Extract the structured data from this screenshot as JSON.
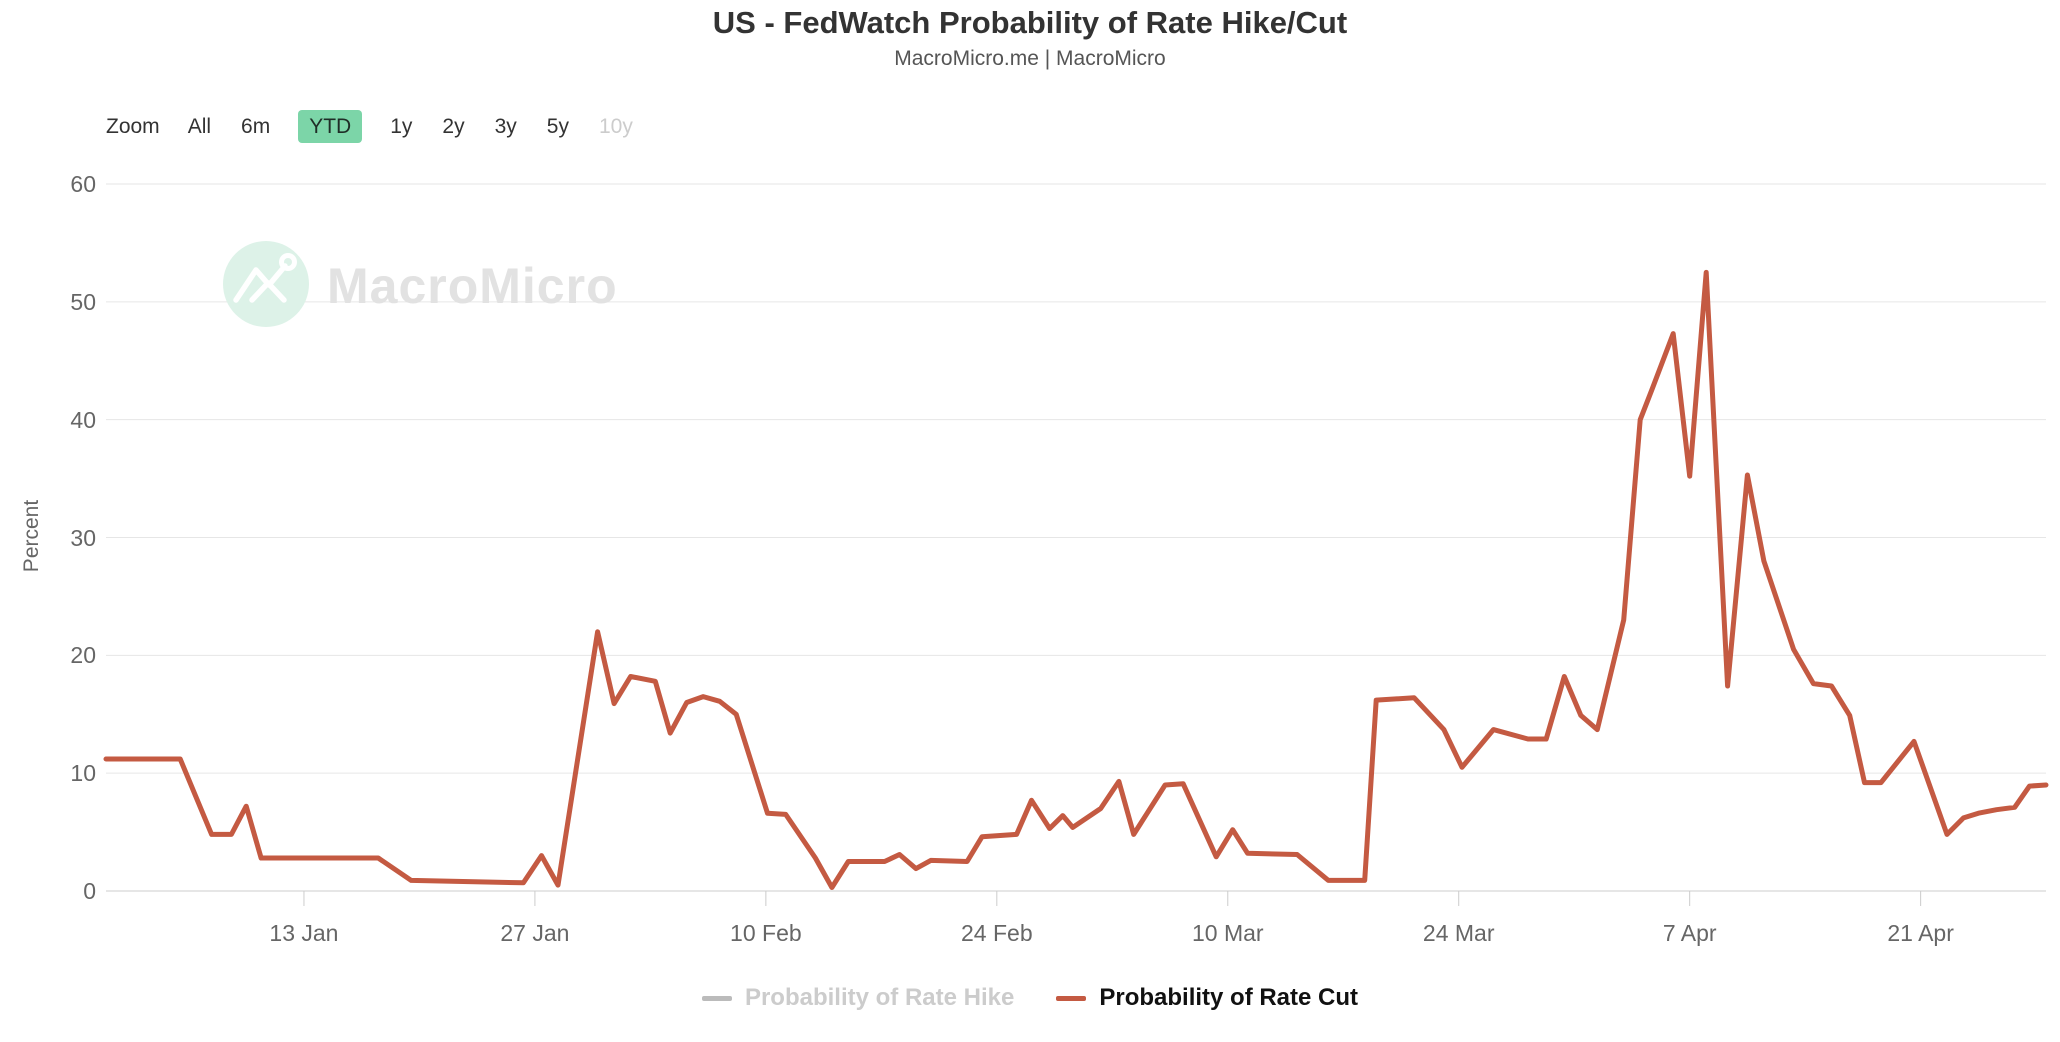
{
  "header": {
    "title": "US - FedWatch Probability of Rate Hike/Cut",
    "subtitle": "MacroMicro.me | MacroMicro"
  },
  "toolbar": {
    "zoom_label": "Zoom",
    "ranges": [
      {
        "label": "All",
        "state": "normal"
      },
      {
        "label": "6m",
        "state": "normal"
      },
      {
        "label": "YTD",
        "state": "active"
      },
      {
        "label": "1y",
        "state": "normal"
      },
      {
        "label": "2y",
        "state": "normal"
      },
      {
        "label": "3y",
        "state": "normal"
      },
      {
        "label": "5y",
        "state": "normal"
      },
      {
        "label": "10y",
        "state": "disabled"
      }
    ]
  },
  "watermark": {
    "brand": "MacroMicro",
    "icon": "macromicro-zigzag-logo"
  },
  "colors": {
    "rate_cut_line": "#c45a42",
    "disabled_text": "#cccccc",
    "ytd_active_bg": "#7cd5a8",
    "grid_line": "#e6e6e6",
    "axis_line": "#cccccc",
    "tick_mark": "#cccccc",
    "watermark_circle": "#ddf2e8",
    "watermark_glyph": "#ffffff",
    "legend_hike_dash": "#bbbbbb",
    "legend_hike_text": "#cccccc",
    "legend_cut_text": "#111111"
  },
  "chart_data": {
    "type": "line",
    "title": "US - FedWatch Probability of Rate Hike/Cut",
    "subtitle": "MacroMicro.me | MacroMicro",
    "xlabel": "",
    "ylabel": "Percent",
    "ylim": [
      0,
      60
    ],
    "y_ticks": [
      0,
      10,
      20,
      30,
      40,
      50,
      60
    ],
    "grid": "horizontal",
    "legend_position": "bottom-center",
    "x_axis": {
      "unit": "days since 1 Jan",
      "range": [
        0,
        117.6
      ],
      "ticks": [
        {
          "label": "13 Jan",
          "day": 12
        },
        {
          "label": "27 Jan",
          "day": 26
        },
        {
          "label": "10 Feb",
          "day": 40
        },
        {
          "label": "24 Feb",
          "day": 54
        },
        {
          "label": "10 Mar",
          "day": 68
        },
        {
          "label": "24 Mar",
          "day": 82
        },
        {
          "label": "7 Apr",
          "day": 96
        },
        {
          "label": "21 Apr",
          "day": 110
        }
      ]
    },
    "legend": [
      {
        "name": "Probability of Rate Hike",
        "dash_color": "#bbbbbb",
        "text_color": "#cccccc",
        "visible": false
      },
      {
        "name": "Probability of Rate Cut",
        "dash_color": "#c45a42",
        "text_color": "#111111",
        "visible": true
      }
    ],
    "series": [
      {
        "name": "Probability of Rate Hike",
        "visible": false,
        "color": "#bbbbbb",
        "points": []
      },
      {
        "name": "Probability of Rate Cut",
        "visible": true,
        "color": "#c45a42",
        "points": [
          [
            0,
            11.2
          ],
          [
            4.5,
            11.2
          ],
          [
            6.4,
            4.8
          ],
          [
            7.6,
            4.8
          ],
          [
            8.5,
            7.2
          ],
          [
            9.4,
            2.8
          ],
          [
            16.5,
            2.8
          ],
          [
            18.5,
            0.9
          ],
          [
            25.3,
            0.7
          ],
          [
            26.4,
            3
          ],
          [
            27.4,
            0.5
          ],
          [
            29.8,
            22
          ],
          [
            30.8,
            15.9
          ],
          [
            31.8,
            18.2
          ],
          [
            33.3,
            17.8
          ],
          [
            34.2,
            13.4
          ],
          [
            35.2,
            16
          ],
          [
            36.2,
            16.5
          ],
          [
            37.2,
            16.1
          ],
          [
            38.2,
            15
          ],
          [
            40.1,
            6.6
          ],
          [
            41.2,
            6.5
          ],
          [
            43,
            2.8
          ],
          [
            44,
            0.3
          ],
          [
            45,
            2.5
          ],
          [
            47.2,
            2.5
          ],
          [
            48.1,
            3.1
          ],
          [
            49.1,
            1.9
          ],
          [
            50,
            2.6
          ],
          [
            52.2,
            2.5
          ],
          [
            53.1,
            4.6
          ],
          [
            55.2,
            4.8
          ],
          [
            56.1,
            7.7
          ],
          [
            57.2,
            5.3
          ],
          [
            58,
            6.4
          ],
          [
            58.6,
            5.4
          ],
          [
            60.3,
            7
          ],
          [
            61.4,
            9.3
          ],
          [
            62.3,
            4.8
          ],
          [
            64.2,
            9
          ],
          [
            65.3,
            9.1
          ],
          [
            67.3,
            2.9
          ],
          [
            68.3,
            5.2
          ],
          [
            69.2,
            3.2
          ],
          [
            72.2,
            3.1
          ],
          [
            74.1,
            0.9
          ],
          [
            76.3,
            0.9
          ],
          [
            77,
            16.2
          ],
          [
            79.3,
            16.4
          ],
          [
            81.1,
            13.7
          ],
          [
            82.2,
            10.5
          ],
          [
            84.1,
            13.7
          ],
          [
            86.2,
            12.9
          ],
          [
            87.3,
            12.9
          ],
          [
            88.4,
            18.2
          ],
          [
            89.4,
            14.9
          ],
          [
            90.4,
            13.7
          ],
          [
            92,
            23
          ],
          [
            93,
            40
          ],
          [
            93.7,
            42.5
          ],
          [
            95,
            47.3
          ],
          [
            96,
            35.2
          ],
          [
            97,
            52.5
          ],
          [
            98.3,
            17.4
          ],
          [
            99.5,
            35.3
          ],
          [
            100.5,
            28
          ],
          [
            102.3,
            20.5
          ],
          [
            103.5,
            17.6
          ],
          [
            104.6,
            17.4
          ],
          [
            105.7,
            14.9
          ],
          [
            106.6,
            9.2
          ],
          [
            107.6,
            9.2
          ],
          [
            109.6,
            12.7
          ],
          [
            111.6,
            4.8
          ],
          [
            112.6,
            6.2
          ],
          [
            113.5,
            6.6
          ],
          [
            114.6,
            6.9
          ],
          [
            115.7,
            7.1
          ],
          [
            116.6,
            8.9
          ],
          [
            117.6,
            9
          ]
        ]
      }
    ]
  }
}
